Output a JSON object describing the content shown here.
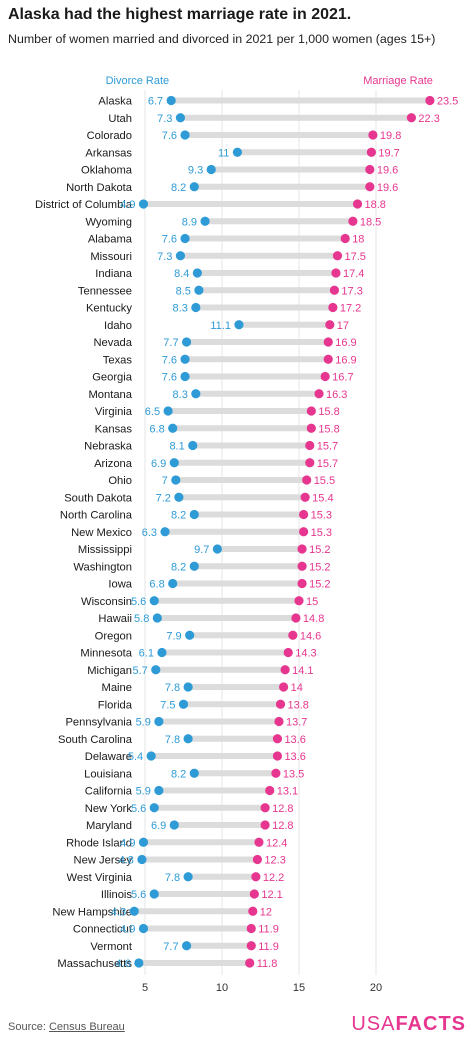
{
  "page": {
    "title": "Alaska had the highest marriage rate in 2021.",
    "subtitle": "Number of women married and divorced in 2021 per 1,000 women (ages 15+)",
    "source_prefix": "Source: ",
    "source_link": "Census Bureau",
    "logo_usa": "USA",
    "logo_facts": "FACTS"
  },
  "colors": {
    "divorce": "#2e9bd6",
    "marriage": "#e6368f",
    "connector": "#dcdcdc",
    "grid": "#e6e6e6"
  },
  "chart_data": {
    "type": "dot-range",
    "xlim": [
      3,
      24
    ],
    "xticks": [
      5,
      10,
      15,
      20
    ],
    "grid": true,
    "series": [
      {
        "name": "Divorce Rate",
        "key": "divorce"
      },
      {
        "name": "Marriage Rate",
        "key": "marriage"
      }
    ],
    "rows": [
      {
        "state": "Alaska",
        "divorce": 6.7,
        "marriage": 23.5
      },
      {
        "state": "Utah",
        "divorce": 7.3,
        "marriage": 22.3
      },
      {
        "state": "Colorado",
        "divorce": 7.6,
        "marriage": 19.8
      },
      {
        "state": "Arkansas",
        "divorce": 11,
        "marriage": 19.7
      },
      {
        "state": "Oklahoma",
        "divorce": 9.3,
        "marriage": 19.6
      },
      {
        "state": "North Dakota",
        "divorce": 8.2,
        "marriage": 19.6
      },
      {
        "state": "District of Columbia",
        "divorce": 4.9,
        "marriage": 18.8
      },
      {
        "state": "Wyoming",
        "divorce": 8.9,
        "marriage": 18.5
      },
      {
        "state": "Alabama",
        "divorce": 7.6,
        "marriage": 18
      },
      {
        "state": "Missouri",
        "divorce": 7.3,
        "marriage": 17.5
      },
      {
        "state": "Indiana",
        "divorce": 8.4,
        "marriage": 17.4
      },
      {
        "state": "Tennessee",
        "divorce": 8.5,
        "marriage": 17.3
      },
      {
        "state": "Kentucky",
        "divorce": 8.3,
        "marriage": 17.2
      },
      {
        "state": "Idaho",
        "divorce": 11.1,
        "marriage": 17
      },
      {
        "state": "Nevada",
        "divorce": 7.7,
        "marriage": 16.9
      },
      {
        "state": "Texas",
        "divorce": 7.6,
        "marriage": 16.9
      },
      {
        "state": "Georgia",
        "divorce": 7.6,
        "marriage": 16.7
      },
      {
        "state": "Montana",
        "divorce": 8.3,
        "marriage": 16.3
      },
      {
        "state": "Virginia",
        "divorce": 6.5,
        "marriage": 15.8
      },
      {
        "state": "Kansas",
        "divorce": 6.8,
        "marriage": 15.8
      },
      {
        "state": "Nebraska",
        "divorce": 8.1,
        "marriage": 15.7
      },
      {
        "state": "Arizona",
        "divorce": 6.9,
        "marriage": 15.7
      },
      {
        "state": "Ohio",
        "divorce": 7,
        "marriage": 15.5
      },
      {
        "state": "South Dakota",
        "divorce": 7.2,
        "marriage": 15.4
      },
      {
        "state": "North Carolina",
        "divorce": 8.2,
        "marriage": 15.3
      },
      {
        "state": "New Mexico",
        "divorce": 6.3,
        "marriage": 15.3
      },
      {
        "state": "Mississippi",
        "divorce": 9.7,
        "marriage": 15.2
      },
      {
        "state": "Washington",
        "divorce": 8.2,
        "marriage": 15.2
      },
      {
        "state": "Iowa",
        "divorce": 6.8,
        "marriage": 15.2
      },
      {
        "state": "Wisconsin",
        "divorce": 5.6,
        "marriage": 15
      },
      {
        "state": "Hawaii",
        "divorce": 5.8,
        "marriage": 14.8
      },
      {
        "state": "Oregon",
        "divorce": 7.9,
        "marriage": 14.6
      },
      {
        "state": "Minnesota",
        "divorce": 6.1,
        "marriage": 14.3
      },
      {
        "state": "Michigan",
        "divorce": 5.7,
        "marriage": 14.1
      },
      {
        "state": "Maine",
        "divorce": 7.8,
        "marriage": 14
      },
      {
        "state": "Florida",
        "divorce": 7.5,
        "marriage": 13.8
      },
      {
        "state": "Pennsylvania",
        "divorce": 5.9,
        "marriage": 13.7
      },
      {
        "state": "South Carolina",
        "divorce": 7.8,
        "marriage": 13.6
      },
      {
        "state": "Delaware",
        "divorce": 5.4,
        "marriage": 13.6
      },
      {
        "state": "Louisiana",
        "divorce": 8.2,
        "marriage": 13.5
      },
      {
        "state": "California",
        "divorce": 5.9,
        "marriage": 13.1
      },
      {
        "state": "New York",
        "divorce": 5.6,
        "marriage": 12.8
      },
      {
        "state": "Maryland",
        "divorce": 6.9,
        "marriage": 12.8
      },
      {
        "state": "Rhode Island",
        "divorce": 4.9,
        "marriage": 12.4
      },
      {
        "state": "New Jersey",
        "divorce": 4.8,
        "marriage": 12.3
      },
      {
        "state": "West Virginia",
        "divorce": 7.8,
        "marriage": 12.2
      },
      {
        "state": "Illinois",
        "divorce": 5.6,
        "marriage": 12.1
      },
      {
        "state": "New Hampshire",
        "divorce": 4.3,
        "marriage": 12
      },
      {
        "state": "Connecticut",
        "divorce": 4.9,
        "marriage": 11.9
      },
      {
        "state": "Vermont",
        "divorce": 7.7,
        "marriage": 11.9
      },
      {
        "state": "Massachusetts",
        "divorce": 4.6,
        "marriage": 11.8
      }
    ]
  }
}
